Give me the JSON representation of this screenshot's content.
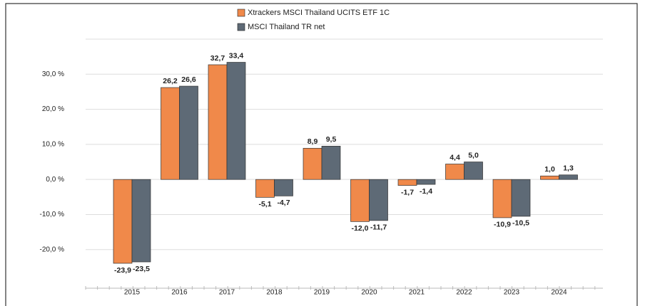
{
  "chart_data": {
    "type": "bar",
    "categories": [
      "2015",
      "2016",
      "2017",
      "2018",
      "2019",
      "2020",
      "2021",
      "2022",
      "2023",
      "2024"
    ],
    "series": [
      {
        "name": "Xtrackers MSCI Thailand UCITS ETF 1C",
        "color": "#f0894a",
        "values": [
          -23.9,
          26.2,
          32.7,
          -5.1,
          8.9,
          -12.0,
          -1.7,
          4.4,
          -10.9,
          1.0
        ],
        "value_labels": [
          "-23,9",
          "26,2",
          "32,7",
          "-5,1",
          "8,9",
          "-12,0",
          "-1,7",
          "4,4",
          "-10,9",
          "1,0"
        ]
      },
      {
        "name": "MSCI Thailand TR net",
        "color": "#5e6a76",
        "values": [
          -23.5,
          26.6,
          33.4,
          -4.7,
          9.5,
          -11.7,
          -1.4,
          5.0,
          -10.5,
          1.3
        ],
        "value_labels": [
          "-23,5",
          "26,6",
          "33,4",
          "-4,7",
          "9,5",
          "-11,7",
          "-1,4",
          "5,0",
          "-10,5",
          "1,3"
        ]
      }
    ],
    "ylim": [
      -31,
      40
    ],
    "yticks": [
      {
        "value": -20,
        "label": "-20,0 %"
      },
      {
        "value": -10,
        "label": "-10,0 %"
      },
      {
        "value": 0,
        "label": "0,0 %"
      },
      {
        "value": 10,
        "label": "10,0 %"
      },
      {
        "value": 20,
        "label": "20,0 %"
      },
      {
        "value": 30,
        "label": "30,0 %"
      }
    ],
    "grid": true
  }
}
